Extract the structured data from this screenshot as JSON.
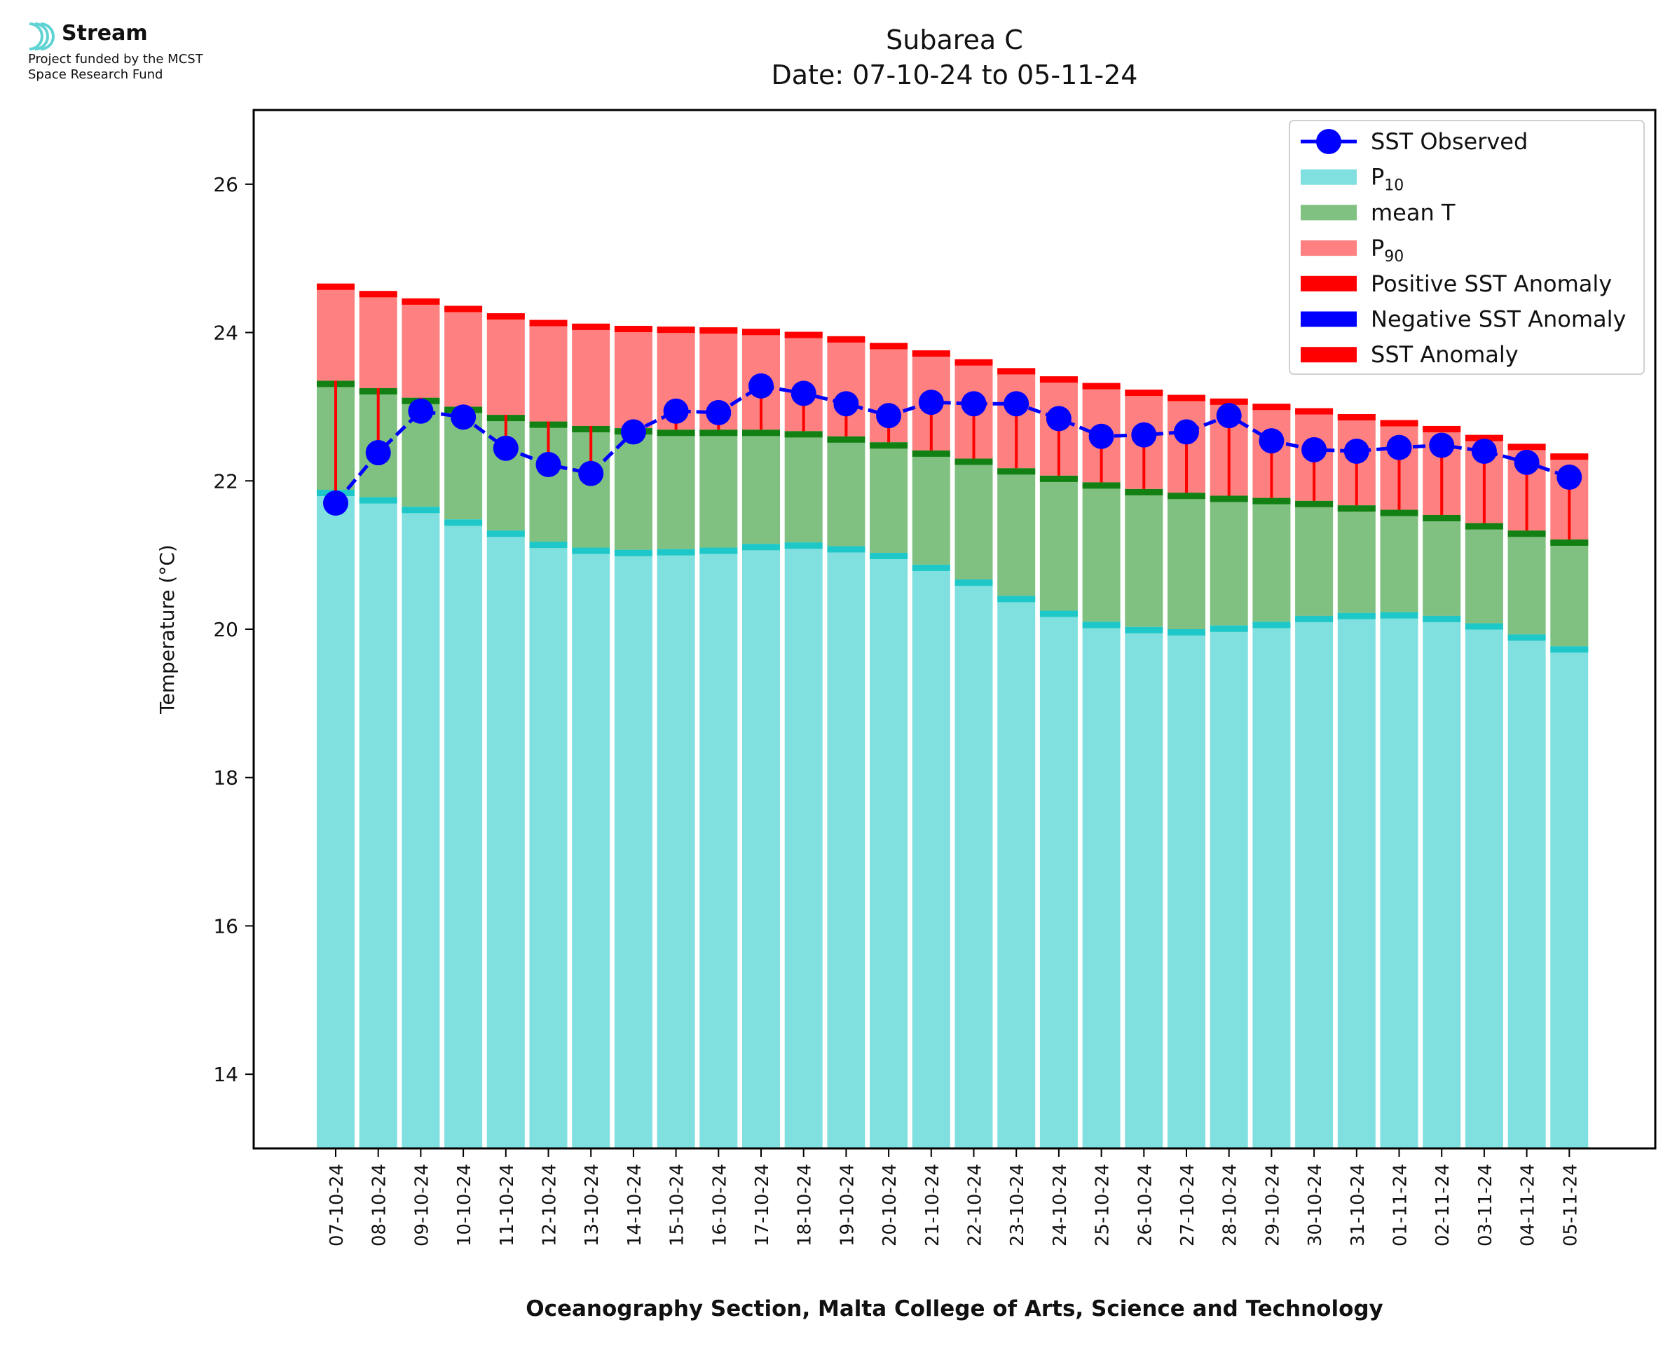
{
  "logo": {
    "brand": "Stream",
    "note_line1": "Project funded by the MCST",
    "note_line2": "Space Research Fund"
  },
  "colors": {
    "p10": "#80dfdf",
    "p10_cap": "#1ec8c8",
    "mean": "#80c080",
    "mean_cap": "#138013",
    "p90": "#ff8080",
    "p90_cap": "#ff0000",
    "observed": "#0000ff",
    "anomaly": "#ff0000",
    "negative": "#0000ff"
  },
  "chart_data": {
    "type": "bar",
    "title": "Subarea C",
    "subtitle": "Date: 07-10-24 to 05-11-24",
    "xlabel": "Oceanography Section, Malta College of Arts, Science and Technology",
    "ylabel": "Temperature (°C)",
    "ylim": [
      13,
      27
    ],
    "yticks": [
      14,
      16,
      18,
      20,
      22,
      24,
      26
    ],
    "legend_position": "top-right",
    "legend": [
      {
        "key": "observed",
        "label": "SST Observed",
        "swatch": "line-marker"
      },
      {
        "key": "p10",
        "label": "P",
        "sub": "10",
        "swatch": "patch"
      },
      {
        "key": "mean",
        "label": "mean T",
        "swatch": "patch"
      },
      {
        "key": "p90",
        "label": "P",
        "sub": "90",
        "swatch": "patch"
      },
      {
        "key": "positive",
        "label": "Positive SST Anomaly",
        "swatch": "patch-red"
      },
      {
        "key": "negative",
        "label": "Negative SST Anomaly",
        "swatch": "patch-blue"
      },
      {
        "key": "anomaly",
        "label": "SST Anomaly",
        "swatch": "patch-red"
      }
    ],
    "categories": [
      "07-10-24",
      "08-10-24",
      "09-10-24",
      "10-10-24",
      "11-10-24",
      "12-10-24",
      "13-10-24",
      "14-10-24",
      "15-10-24",
      "16-10-24",
      "17-10-24",
      "18-10-24",
      "19-10-24",
      "20-10-24",
      "21-10-24",
      "22-10-24",
      "23-10-24",
      "24-10-24",
      "25-10-24",
      "26-10-24",
      "27-10-24",
      "28-10-24",
      "29-10-24",
      "30-10-24",
      "31-10-24",
      "01-11-24",
      "02-11-24",
      "03-11-24",
      "04-11-24",
      "05-11-24"
    ],
    "series": [
      {
        "name": "P10",
        "values": [
          21.88,
          21.78,
          21.65,
          21.48,
          21.33,
          21.18,
          21.1,
          21.07,
          21.08,
          21.1,
          21.15,
          21.17,
          21.12,
          21.03,
          20.87,
          20.67,
          20.45,
          20.25,
          20.1,
          20.03,
          20.0,
          20.05,
          20.1,
          20.18,
          20.22,
          20.23,
          20.18,
          20.08,
          19.93,
          19.77
        ]
      },
      {
        "name": "mean T",
        "values": [
          23.35,
          23.25,
          23.12,
          23.0,
          22.89,
          22.8,
          22.74,
          22.71,
          22.69,
          22.69,
          22.69,
          22.67,
          22.6,
          22.52,
          22.41,
          22.3,
          22.17,
          22.07,
          21.98,
          21.89,
          21.84,
          21.8,
          21.77,
          21.73,
          21.67,
          21.61,
          21.54,
          21.43,
          21.33,
          21.21
        ]
      },
      {
        "name": "P90",
        "values": [
          24.66,
          24.56,
          24.46,
          24.36,
          24.26,
          24.17,
          24.12,
          24.09,
          24.08,
          24.07,
          24.05,
          24.01,
          23.95,
          23.86,
          23.76,
          23.64,
          23.52,
          23.41,
          23.32,
          23.23,
          23.16,
          23.11,
          23.04,
          22.98,
          22.9,
          22.82,
          22.74,
          22.62,
          22.5,
          22.37
        ]
      },
      {
        "name": "SST Observed",
        "values": [
          21.7,
          22.38,
          22.94,
          22.86,
          22.44,
          22.22,
          22.1,
          22.66,
          22.94,
          22.92,
          23.28,
          23.18,
          23.04,
          22.88,
          23.06,
          23.04,
          23.04,
          22.84,
          22.6,
          22.62,
          22.66,
          22.88,
          22.54,
          22.42,
          22.4,
          22.45,
          22.48,
          22.4,
          22.25,
          22.05
        ]
      }
    ],
    "grid": false
  }
}
